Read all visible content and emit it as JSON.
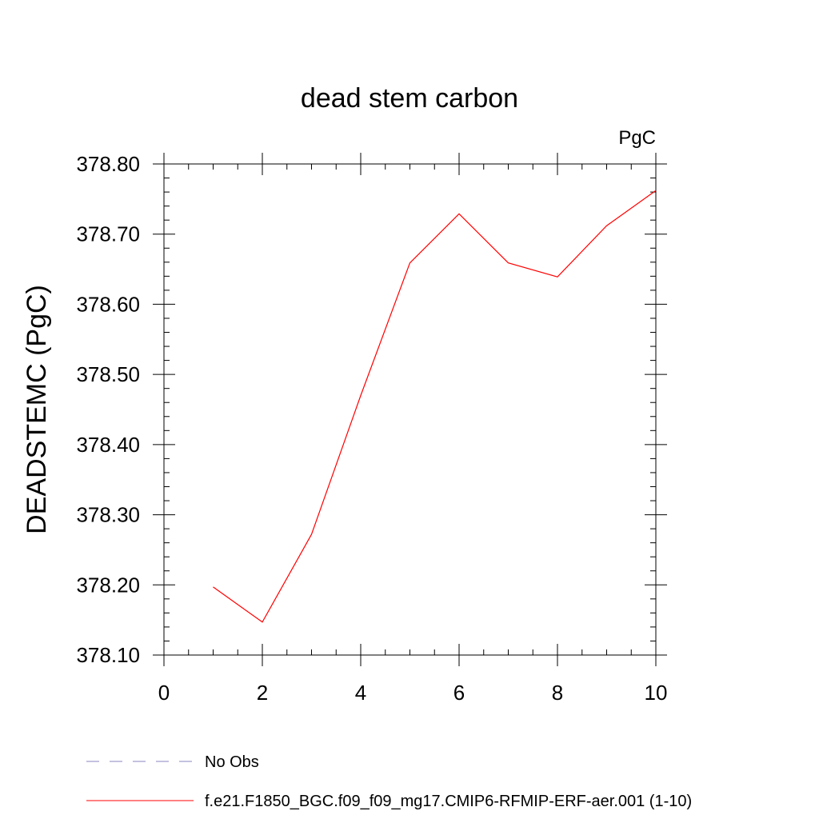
{
  "chart_data": {
    "type": "line",
    "title": "dead stem carbon",
    "units_label": "PgC",
    "xlabel": "",
    "ylabel": "DEADSTEMC  (PgC)",
    "xlim": [
      0,
      10
    ],
    "ylim": [
      378.1,
      378.8
    ],
    "xticks": [
      0,
      2,
      4,
      6,
      8,
      10
    ],
    "xtick_labels": [
      "0",
      "2",
      "4",
      "6",
      "8",
      "10"
    ],
    "yticks": [
      378.1,
      378.2,
      378.3,
      378.4,
      378.5,
      378.6,
      378.7,
      378.8
    ],
    "ytick_labels": [
      "378.10",
      "378.20",
      "378.30",
      "378.40",
      "378.50",
      "378.60",
      "378.70",
      "378.80"
    ],
    "grid": false,
    "legend_position": "bottom",
    "series": [
      {
        "name": "f.e21.F1850_BGC.f09_f09_mg17.CMIP6-RFMIP-ERF-aer.001 (1-10)",
        "color": "#ff0000",
        "style": "solid",
        "x": [
          1,
          2,
          3,
          4,
          5,
          6,
          7,
          8,
          9,
          10
        ],
        "values": [
          378.197,
          378.147,
          378.272,
          378.47,
          378.659,
          378.729,
          378.659,
          378.639,
          378.712,
          378.762
        ]
      },
      {
        "name": "No Obs",
        "color": "#8a84c0",
        "style": "dashed",
        "x": [],
        "values": []
      }
    ],
    "legend": [
      {
        "label": "No Obs",
        "color": "#8a84c0",
        "style": "dashed"
      },
      {
        "label": "f.e21.F1850_BGC.f09_f09_mg17.CMIP6-RFMIP-ERF-aer.001 (1-10)",
        "color": "#ff0000",
        "style": "solid"
      }
    ]
  }
}
